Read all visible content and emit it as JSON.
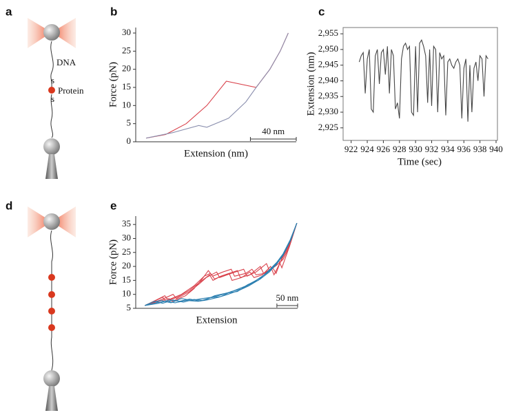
{
  "diagrams": [
    {
      "panel": "a",
      "labels": [
        "DNA",
        "Protein"
      ]
    },
    {
      "panel": "d"
    }
  ],
  "chart_data": [
    {
      "type": "line",
      "panel": "b",
      "xlabel": "Extension (nm)",
      "ylabel": "Force (pN)",
      "xlim": [
        0,
        140
      ],
      "ylim": [
        0,
        30
      ],
      "yticks": [
        0,
        5,
        10,
        15,
        20,
        25,
        30
      ],
      "scalebar": {
        "label": "40 nm",
        "length": 40
      },
      "series": [
        {
          "color": "#d9414b",
          "x": [
            9,
            26,
            44,
            62,
            79,
            105,
            117,
            126,
            133
          ],
          "values": [
            1,
            2,
            5,
            10,
            16.7,
            15,
            20,
            25,
            30
          ]
        },
        {
          "color": "#8a8fae",
          "x": [
            9,
            32,
            55,
            62,
            81,
            96,
            105,
            117,
            126,
            133
          ],
          "values": [
            1,
            2.5,
            4.5,
            4,
            6.5,
            11,
            15,
            20,
            25,
            30
          ]
        }
      ]
    },
    {
      "type": "line",
      "panel": "c",
      "xlabel": "Time (sec)",
      "ylabel": "Extension (nm)",
      "box": true,
      "xlim": [
        921,
        940
      ],
      "ylim": [
        2921,
        2957
      ],
      "xticks": [
        922,
        924,
        926,
        928,
        930,
        932,
        934,
        936,
        938,
        940
      ],
      "yticks": [
        {
          "value": 2925,
          "label": "2,925"
        },
        {
          "value": 2930,
          "label": "2,930"
        },
        {
          "value": 2935,
          "label": "2,935"
        },
        {
          "value": 2940,
          "label": "2,940"
        },
        {
          "value": 2945,
          "label": "2,945"
        },
        {
          "value": 2950,
          "label": "2,950"
        },
        {
          "value": 2955,
          "label": "2,955"
        }
      ],
      "color": "#444444",
      "x": [
        923,
        923.25,
        923.5,
        923.75,
        924,
        924.25,
        924.5,
        924.75,
        925,
        925.25,
        925.5,
        925.75,
        926,
        926.25,
        926.5,
        926.75,
        927,
        927.25,
        927.5,
        927.75,
        928,
        928.25,
        928.5,
        928.75,
        929,
        929.25,
        929.5,
        929.75,
        930,
        930.25,
        930.5,
        930.75,
        931,
        931.25,
        931.5,
        931.75,
        932,
        932.25,
        932.5,
        932.75,
        933,
        933.25,
        933.5,
        933.75,
        934,
        934.25,
        934.5,
        934.75,
        935,
        935.25,
        935.5,
        935.75,
        936,
        936.25,
        936.5,
        936.75,
        937,
        937.25,
        937.5,
        937.75,
        938,
        938.25,
        938.5,
        938.75,
        939
      ],
      "values": [
        2946,
        2948,
        2949,
        2936,
        2947,
        2950,
        2931,
        2930,
        2948,
        2950,
        2939,
        2949,
        2950,
        2942,
        2951,
        2936,
        2950,
        2948,
        2931,
        2933,
        2928,
        2947,
        2951,
        2952,
        2950,
        2951,
        2930,
        2929,
        2951,
        2930,
        2952,
        2953,
        2951,
        2948,
        2933,
        2950,
        2932,
        2951,
        2950,
        2930,
        2949,
        2947,
        2948,
        2929,
        2946,
        2947,
        2945,
        2944,
        2946,
        2947,
        2945,
        2928,
        2944,
        2947,
        2927,
        2945,
        2930,
        2944,
        2946,
        2940,
        2948,
        2947,
        2935,
        2948,
        2947
      ]
    },
    {
      "type": "line",
      "panel": "e",
      "xlabel": "Extension",
      "ylabel": "Force (pN)",
      "xlim": [
        0,
        390
      ],
      "ylim": [
        5,
        38
      ],
      "yticks": [
        5,
        10,
        15,
        20,
        25,
        30,
        35
      ],
      "scalebar": {
        "label": "50 nm",
        "length": 50
      },
      "series": [
        {
          "color": "#d9414b",
          "x": [
            22,
            55,
            80,
            88,
            120,
            140,
            160,
            175,
            185,
            210,
            230,
            238,
            265,
            280,
            290,
            310,
            330,
            338,
            352,
            370,
            388
          ],
          "values": [
            6,
            7.5,
            8.5,
            7.5,
            9.5,
            12,
            15.5,
            18.5,
            16.5,
            18,
            19,
            16.5,
            17.5,
            19,
            17,
            17.5,
            19.5,
            17.5,
            23,
            28,
            35.5
          ]
        },
        {
          "color": "#d9414b",
          "x": [
            22,
            50,
            70,
            78,
            110,
            140,
            165,
            180,
            190,
            215,
            245,
            252,
            275,
            300,
            308,
            330,
            345,
            352,
            370,
            388
          ],
          "values": [
            6,
            8,
            9.5,
            8,
            10,
            13,
            16.5,
            17.5,
            15.5,
            17,
            18.5,
            16,
            17,
            20,
            17.5,
            19.5,
            22,
            19.5,
            27,
            35.5
          ]
        },
        {
          "color": "#d9414b",
          "x": [
            22,
            45,
            65,
            72,
            100,
            130,
            160,
            178,
            186,
            205,
            225,
            232,
            255,
            275,
            285,
            305,
            325,
            333,
            350,
            370,
            388
          ],
          "values": [
            6,
            7.5,
            9,
            7.5,
            9,
            11.5,
            15,
            17,
            15,
            16.5,
            17.5,
            15,
            16,
            18,
            16,
            17,
            20,
            17,
            22,
            27.5,
            35.5
          ]
        },
        {
          "color": "#d9414b",
          "x": [
            22,
            60,
            90,
            98,
            130,
            155,
            170,
            195,
            202,
            230,
            260,
            268,
            290,
            315,
            322,
            340,
            355,
            370,
            388
          ],
          "values": [
            6,
            8,
            10,
            8.5,
            11,
            14,
            16,
            18,
            16,
            17.5,
            19,
            16.5,
            18,
            21,
            18.5,
            20.5,
            22.5,
            27,
            35.5
          ]
        },
        {
          "color": "#2b7fb0",
          "x": [
            22,
            50,
            72,
            95,
            122,
            150,
            172,
            200,
            222,
            250,
            272,
            300,
            322,
            340,
            355,
            372,
            388
          ],
          "values": [
            6,
            7,
            7.5,
            7,
            7.8,
            7.5,
            8,
            9,
            10,
            11.5,
            13,
            15.5,
            18,
            21,
            24,
            29,
            35.5
          ]
        },
        {
          "color": "#2b7fb0",
          "x": [
            22,
            45,
            65,
            90,
            115,
            140,
            165,
            190,
            220,
            245,
            270,
            295,
            320,
            340,
            355,
            372,
            388
          ],
          "values": [
            6,
            7.5,
            6.8,
            8,
            7.2,
            8.2,
            7.8,
            9.5,
            10.5,
            11,
            13.5,
            15,
            18.5,
            21.5,
            24.5,
            29.5,
            35.5
          ]
        },
        {
          "color": "#2b7fb0",
          "x": [
            22,
            55,
            80,
            105,
            130,
            155,
            180,
            205,
            230,
            255,
            280,
            305,
            325,
            345,
            360,
            375,
            388
          ],
          "values": [
            6,
            6.8,
            8,
            7.5,
            8.3,
            7.6,
            8.8,
            9.2,
            11,
            12,
            14,
            16.5,
            19,
            22,
            25.5,
            30,
            35.5
          ]
        },
        {
          "color": "#2b7fb0",
          "x": [
            22,
            40,
            60,
            85,
            110,
            135,
            160,
            185,
            210,
            235,
            262,
            290,
            315,
            338,
            355,
            372,
            388
          ],
          "values": [
            6,
            7.2,
            7.8,
            7,
            8.5,
            7.8,
            8.5,
            9,
            10,
            11.2,
            12.8,
            15,
            17.5,
            20.5,
            24,
            29,
            35.5
          ]
        }
      ]
    }
  ]
}
